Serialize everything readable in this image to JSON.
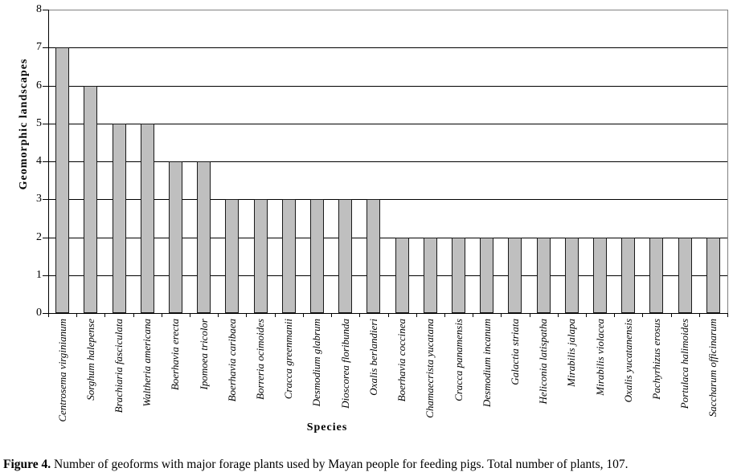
{
  "figure": {
    "caption_label": "Figure 4.",
    "caption_text": " Number of geoforms with major forage plants used by Mayan people for feeding pigs. Total number of plants, 107."
  },
  "chart_data": {
    "type": "bar",
    "title": "",
    "xlabel": "Species",
    "ylabel": "Geomorphic landscapes",
    "ylim": [
      0,
      8
    ],
    "ytick_interval": 1,
    "yticks": [
      0,
      1,
      2,
      3,
      4,
      5,
      6,
      7,
      8
    ],
    "grid": "horizontal",
    "legend": "none",
    "bar_fill_color": "#bfbfbf",
    "bar_border_color": "#1a1a1a",
    "gridline_color": "#000000",
    "plot_border_color": "#808080",
    "categories": [
      "Centrosema virginianum",
      "Sorghum halepense",
      "Brachiaria fasciculata",
      "Waltheria americana",
      "Boerhavia erecta",
      "Ipomoea tricolor",
      "Boerhavia caribaea",
      "Borreria ocimoides",
      "Cracca greenmanii",
      "Desmodium glabrum",
      "Dioscorea floribunda",
      "Oxalis berlandieri",
      "Boerhavia coccinea",
      "Chamaecrista yucatana",
      "Cracca panamensis",
      "Desmodium incanum",
      "Galactia striata",
      "Heliconia latispatha",
      "Mirabilis jalapa",
      "Mirabilis violacea",
      "Oxalis yucatanensis",
      "Pachyrhizus erosus",
      "Portulaca halimoides",
      "Saccharum officinarum"
    ],
    "values": [
      7,
      6,
      5,
      5,
      4,
      4,
      3,
      3,
      3,
      3,
      3,
      3,
      2,
      2,
      2,
      2,
      2,
      2,
      2,
      2,
      2,
      2,
      2,
      2
    ]
  }
}
